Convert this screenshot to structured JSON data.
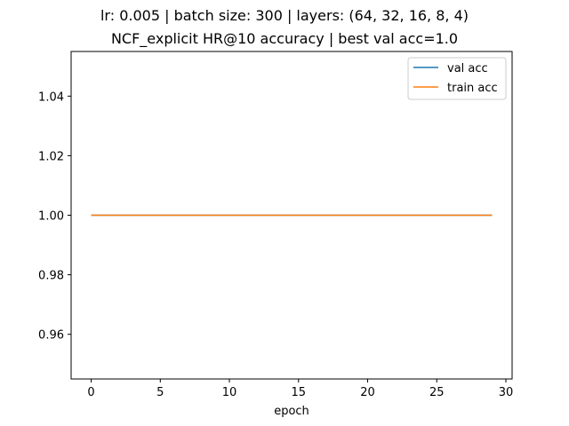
{
  "chart_data": {
    "type": "line",
    "title_lines": [
      "lr: 0.005 | batch size: 300 | layers: (64, 32, 16, 8, 4)",
      "NCF_explicit HR@10 accuracy | best val acc=1.0"
    ],
    "xlabel": "epoch",
    "ylabel": "",
    "xlim": [
      -1.45,
      30.45
    ],
    "ylim": [
      0.945,
      1.055
    ],
    "xticks": [
      0,
      5,
      10,
      15,
      20,
      25,
      30
    ],
    "xtick_labels": [
      "0",
      "5",
      "10",
      "15",
      "20",
      "25",
      "30"
    ],
    "yticks": [
      0.96,
      0.98,
      1.0,
      1.02,
      1.04
    ],
    "ytick_labels": [
      "0.96",
      "0.98",
      "1.00",
      "1.02",
      "1.04"
    ],
    "grid": false,
    "legend_position": "top-right",
    "x": [
      0,
      1,
      2,
      3,
      4,
      5,
      6,
      7,
      8,
      9,
      10,
      11,
      12,
      13,
      14,
      15,
      16,
      17,
      18,
      19,
      20,
      21,
      22,
      23,
      24,
      25,
      26,
      27,
      28,
      29
    ],
    "series": [
      {
        "name": "val acc",
        "color": "#1f77b4",
        "values": [
          1,
          1,
          1,
          1,
          1,
          1,
          1,
          1,
          1,
          1,
          1,
          1,
          1,
          1,
          1,
          1,
          1,
          1,
          1,
          1,
          1,
          1,
          1,
          1,
          1,
          1,
          1,
          1,
          1,
          1
        ]
      },
      {
        "name": "train acc",
        "color": "#ff7f0e",
        "values": [
          1,
          1,
          1,
          1,
          1,
          1,
          1,
          1,
          1,
          1,
          1,
          1,
          1,
          1,
          1,
          1,
          1,
          1,
          1,
          1,
          1,
          1,
          1,
          1,
          1,
          1,
          1,
          1,
          1,
          1
        ]
      }
    ]
  }
}
